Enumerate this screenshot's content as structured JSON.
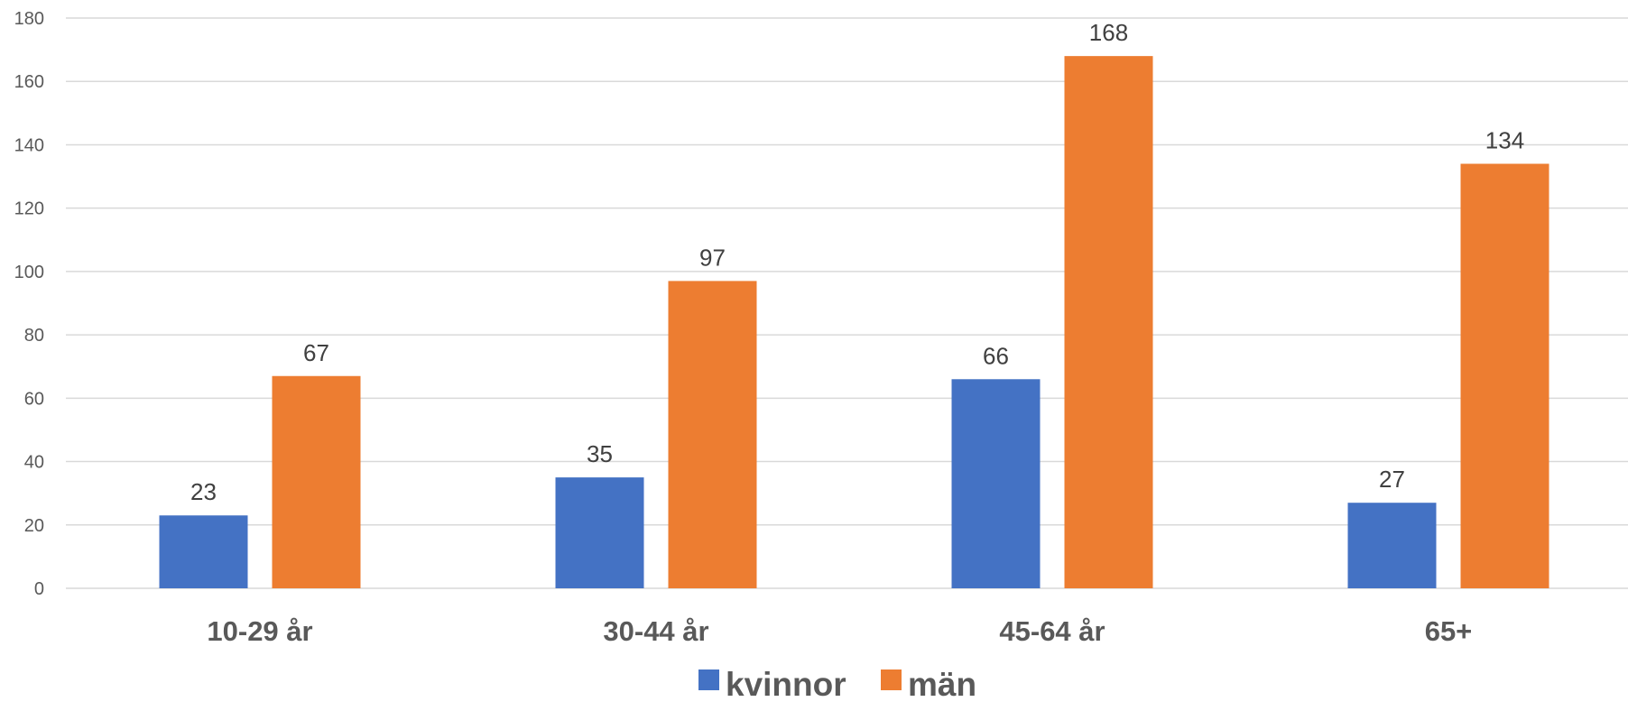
{
  "chart_data": {
    "type": "bar",
    "title": "",
    "xlabel": "",
    "ylabel": "",
    "categories": [
      "10-29 år",
      "30-44 år",
      "45-64 år",
      "65+"
    ],
    "series": [
      {
        "name": "kvinnor",
        "values": [
          23,
          35,
          66,
          27
        ],
        "color": "#4472c4"
      },
      {
        "name": "män",
        "values": [
          67,
          97,
          168,
          134
        ],
        "color": "#ed7d31"
      }
    ],
    "ylim": [
      0,
      180
    ],
    "yticks": [
      0,
      20,
      40,
      60,
      80,
      100,
      120,
      140,
      160,
      180
    ],
    "grid": true,
    "legend_position": "bottom",
    "data_labels": true
  },
  "colors": {
    "gridline": "#d9d9d9",
    "axis_text": "#595959",
    "data_label_text": "#404040"
  }
}
